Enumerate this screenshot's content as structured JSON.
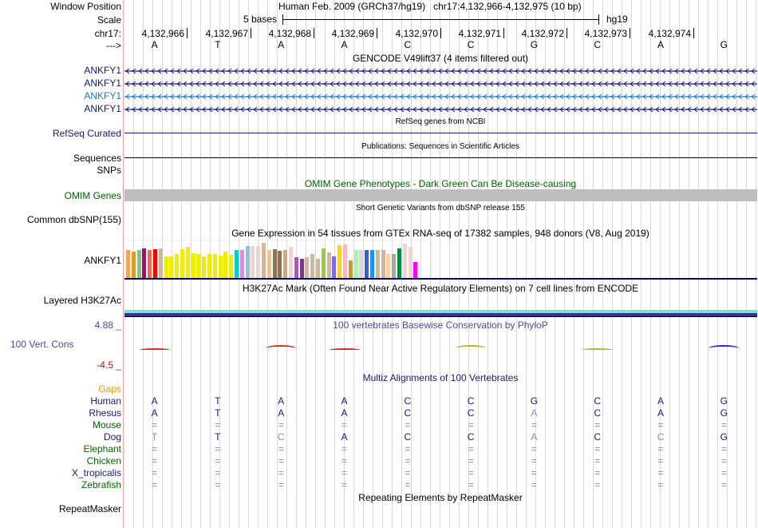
{
  "header": {
    "window_position_label": "Window Position",
    "scale_label": "Scale",
    "chrom_label": "chr17:",
    "strand_label": "--->",
    "assembly_title": "Human Feb. 2009 (GRCh37/hg19)   chr17:4,132,966-4,132,975 (10 bp)",
    "scale_text": "5 bases",
    "scale_db": "hg19",
    "positions": [
      "4,132,966",
      "4,132,967",
      "4,132,968",
      "4,132,969",
      "4,132,970",
      "4,132,971",
      "4,132,972",
      "4,132,973",
      "4,132,974"
    ],
    "bases": [
      "A",
      "T",
      "A",
      "A",
      "C",
      "C",
      "G",
      "C",
      "A",
      "G"
    ]
  },
  "tracks": {
    "gencode": {
      "title": "GENCODE V49lift37 (4 items filtered out)",
      "items": [
        {
          "label": "ANKFY1",
          "color": "#191970"
        },
        {
          "label": "ANKFY1",
          "color": "#191970"
        },
        {
          "label": "ANKFY1",
          "color": "#1f77b4"
        },
        {
          "label": "ANKFY1",
          "color": "#191970"
        }
      ]
    },
    "refseq": {
      "label": "RefSeq Curated",
      "title": "RefSeq genes from NCBI",
      "color": "#191970"
    },
    "publications": {
      "label": "Sequences",
      "title": "Publications: Sequences in Scientific Articles"
    },
    "snps": {
      "label": "SNPs"
    },
    "omim": {
      "label": "OMIM Genes",
      "title": "OMIM Gene Phenotypes - Dark Green Can Be Disease-causing",
      "color": "#006400"
    },
    "dbsnp": {
      "label": "Common dbSNP(155)",
      "title": "Short Genetic Variants from dbSNP release 155"
    },
    "gtex": {
      "label": "ANKFY1",
      "title": "Gene Expression in 54 tissues from GTEx RNA-seq of 17382 samples, 948 donors (V8, Aug 2019)",
      "bars": [
        {
          "color": "#ffa54f",
          "value": 0.8
        },
        {
          "color": "#ee9a00",
          "value": 0.76
        },
        {
          "color": "#8fbc8f",
          "value": 0.8
        },
        {
          "color": "#8b1c62",
          "value": 0.85
        },
        {
          "color": "#ee6a50",
          "value": 0.81
        },
        {
          "color": "#ff0000",
          "value": 0.83
        },
        {
          "color": "#cdb79e",
          "value": 0.85
        },
        {
          "color": "#eeee00",
          "value": 0.62
        },
        {
          "color": "#eeee00",
          "value": 0.62
        },
        {
          "color": "#eeee00",
          "value": 0.7
        },
        {
          "color": "#eeee00",
          "value": 0.83
        },
        {
          "color": "#eeee00",
          "value": 0.88
        },
        {
          "color": "#eeee00",
          "value": 0.72
        },
        {
          "color": "#eeee00",
          "value": 0.68
        },
        {
          "color": "#eeee00",
          "value": 0.62
        },
        {
          "color": "#eeee00",
          "value": 0.68
        },
        {
          "color": "#eeee00",
          "value": 0.7
        },
        {
          "color": "#eeee00",
          "value": 0.65
        },
        {
          "color": "#eeee00",
          "value": 0.76
        },
        {
          "color": "#eeee00",
          "value": 0.66
        },
        {
          "color": "#00cdcd",
          "value": 0.79
        },
        {
          "color": "#ee82ee",
          "value": 0.79
        },
        {
          "color": "#9ac0cd",
          "value": 0.91
        },
        {
          "color": "#eed5d2",
          "value": 0.91
        },
        {
          "color": "#eed5d2",
          "value": 0.91
        },
        {
          "color": "#cdb79e",
          "value": 1.0
        },
        {
          "color": "#eec591",
          "value": 0.81
        },
        {
          "color": "#8b7355",
          "value": 0.83
        },
        {
          "color": "#8b7355",
          "value": 0.77
        },
        {
          "color": "#cdaa7d",
          "value": 0.81
        },
        {
          "color": "#eed5d2",
          "value": 0.88
        },
        {
          "color": "#b452cd",
          "value": 0.6
        },
        {
          "color": "#7a378b",
          "value": 0.55
        },
        {
          "color": "#cdb79e",
          "value": 0.6
        },
        {
          "color": "#cdb79e",
          "value": 0.68
        },
        {
          "color": "#cdb79e",
          "value": 0.55
        },
        {
          "color": "#9acd32",
          "value": 0.85
        },
        {
          "color": "#cdb79e",
          "value": 0.74
        },
        {
          "color": "#7b68ee",
          "value": 0.63
        },
        {
          "color": "#ffd700",
          "value": 0.93
        },
        {
          "color": "#ffb6c1",
          "value": 0.96
        },
        {
          "color": "#cd9b1d",
          "value": 0.52
        },
        {
          "color": "#b4eeb4",
          "value": 0.81
        },
        {
          "color": "#d9d9d9",
          "value": 0.81
        },
        {
          "color": "#3a5fcd",
          "value": 0.81
        },
        {
          "color": "#1e90ff",
          "value": 0.81
        },
        {
          "color": "#cdb79e",
          "value": 0.79
        },
        {
          "color": "#cdb79e",
          "value": 0.81
        },
        {
          "color": "#ffd39b",
          "value": 0.7
        },
        {
          "color": "#a6a6a6",
          "value": 0.68
        },
        {
          "color": "#008b45",
          "value": 0.85
        },
        {
          "color": "#eed5d2",
          "value": 0.98
        },
        {
          "color": "#eed5d2",
          "value": 0.88
        },
        {
          "color": "#ff00ff",
          "value": 0.46
        }
      ]
    },
    "h3k27ac": {
      "label": "Layered H3K27Ac",
      "title": "H3K27Ac Mark (Often Found Near Active Regulatory Elements) on 7 cell lines from ENCODE"
    },
    "phylop": {
      "label": "100 Vert. Cons",
      "title": "100 vertebrates Basewise Conservation by PhyloP",
      "max_label": "4.88 _",
      "min_label": "-4.5 _",
      "glyphs": [
        {
          "base": "A",
          "color": "#e00000",
          "strength": "low"
        },
        {
          "base": "T",
          "color": "#e00000",
          "strength": "none"
        },
        {
          "base": "A",
          "color": "#e00000",
          "strength": "mid"
        },
        {
          "base": "A",
          "color": "#e00000",
          "strength": "low"
        },
        {
          "base": "C",
          "color": "#aaaa00",
          "strength": "none"
        },
        {
          "base": "C",
          "color": "#aaaa00",
          "strength": "mid"
        },
        {
          "base": "G",
          "color": "#aaaa00",
          "strength": "none"
        },
        {
          "base": "C",
          "color": "#aaaa00",
          "strength": "low"
        },
        {
          "base": "A",
          "color": "#0000e0",
          "strength": "none"
        },
        {
          "base": "G",
          "color": "#0000e0",
          "strength": "mid"
        }
      ]
    },
    "multiz": {
      "title": "Multiz Alignments of 100 Vertebrates",
      "gaps_label": "Gaps",
      "species": [
        {
          "name": "Human",
          "name_color": "#191970",
          "bases": [
            "A",
            "T",
            "A",
            "A",
            "C",
            "C",
            "G",
            "C",
            "A",
            "G"
          ],
          "dim": [
            false,
            false,
            false,
            false,
            false,
            false,
            false,
            false,
            false,
            false
          ]
        },
        {
          "name": "Rhesus",
          "name_color": "#191970",
          "bases": [
            "A",
            "T",
            "A",
            "A",
            "C",
            "C",
            "A",
            "C",
            "A",
            "G"
          ],
          "dim": [
            false,
            false,
            false,
            false,
            false,
            false,
            true,
            false,
            false,
            false
          ]
        },
        {
          "name": "Mouse",
          "name_color": "#006400",
          "bases": [
            "=",
            "=",
            "=",
            "=",
            "=",
            "=",
            "=",
            "=",
            "=",
            "="
          ],
          "dim": [
            true,
            true,
            true,
            true,
            true,
            true,
            true,
            true,
            true,
            true
          ]
        },
        {
          "name": "Dog",
          "name_color": "#191970",
          "bases": [
            "T",
            "T",
            "C",
            "A",
            "C",
            "C",
            "A",
            "C",
            "C",
            "G"
          ],
          "dim": [
            true,
            false,
            true,
            false,
            false,
            false,
            true,
            false,
            true,
            false
          ]
        },
        {
          "name": "Elephant",
          "name_color": "#006400",
          "bases": [
            "=",
            "=",
            "=",
            "=",
            "=",
            "=",
            "=",
            "=",
            "=",
            "="
          ],
          "dim": [
            true,
            true,
            true,
            true,
            true,
            true,
            true,
            true,
            true,
            true
          ]
        },
        {
          "name": "Chicken",
          "name_color": "#006400",
          "bases": [
            "=",
            "=",
            "=",
            "=",
            "=",
            "=",
            "=",
            "=",
            "=",
            "="
          ],
          "dim": [
            true,
            true,
            true,
            true,
            true,
            true,
            true,
            true,
            true,
            true
          ]
        },
        {
          "name": "X_tropicalis",
          "name_color": "#191970",
          "bases": [
            "=",
            "=",
            "=",
            "=",
            "=",
            "=",
            "=",
            "=",
            "=",
            "="
          ],
          "dim": [
            true,
            true,
            true,
            true,
            true,
            true,
            true,
            true,
            true,
            true
          ]
        },
        {
          "name": "Zebrafish",
          "name_color": "#006400",
          "bases": [
            "=",
            "=",
            "=",
            "=",
            "=",
            "=",
            "=",
            "=",
            "=",
            "="
          ],
          "dim": [
            true,
            true,
            true,
            true,
            true,
            true,
            true,
            true,
            true,
            true
          ]
        }
      ]
    },
    "repeatmasker": {
      "label": "RepeatMasker",
      "title": "Repeating Elements by RepeatMasker"
    }
  },
  "colors": {
    "dark_blue": "#191970",
    "light_blue": "#1f77b4",
    "green": "#006400",
    "gaps_orange": "#e69a00",
    "phylop_label": "#4b4b9b",
    "phylop_min": "#8b2020",
    "grid": "#d7d7f5",
    "separator": "#f4a0a0"
  }
}
